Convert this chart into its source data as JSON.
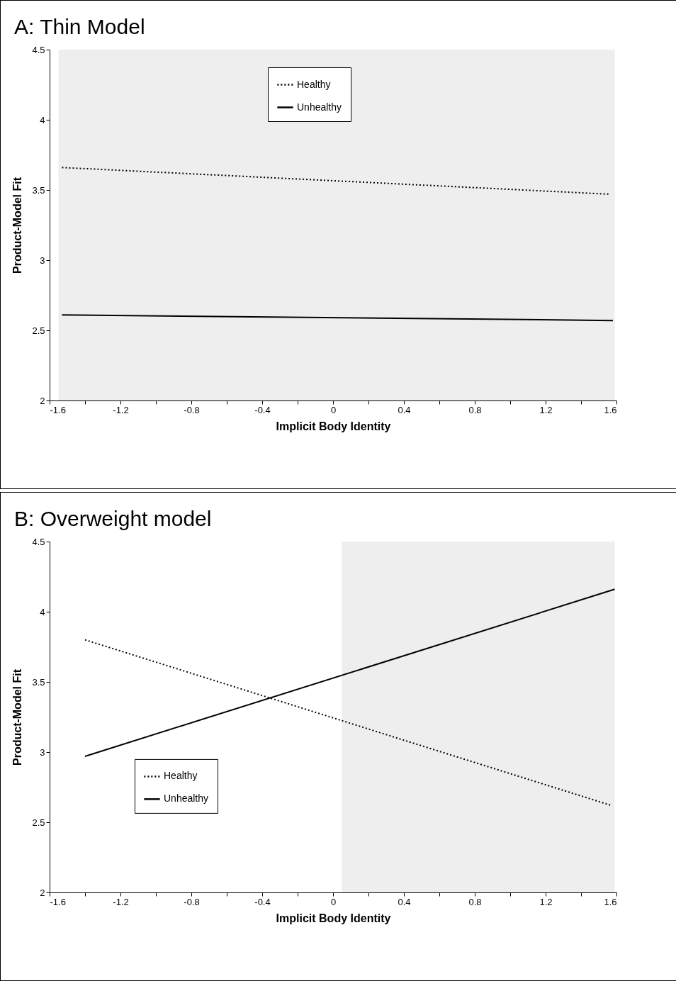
{
  "chart_data": [
    {
      "type": "line",
      "title": "A: Thin Model",
      "xlabel": "Implicit Body Identity",
      "ylabel": "Product-Model Fit",
      "xlim": [
        -1.6,
        1.6
      ],
      "ylim": [
        2,
        4.5
      ],
      "xticks": [
        -1.6,
        {
          "value": -1.4,
          "label": null
        },
        -1.2,
        {
          "value": -1.0,
          "label": null
        },
        -0.8,
        {
          "value": -0.6,
          "label": null
        },
        -0.4,
        {
          "value": -0.2,
          "label": null
        },
        0,
        {
          "value": 0.2,
          "label": null
        },
        0.4,
        {
          "value": 0.6,
          "label": null
        },
        0.8,
        {
          "value": 1.0,
          "label": null
        },
        1.2,
        {
          "value": 1.4,
          "label": null
        },
        1.6
      ],
      "yticks": [
        2,
        2.5,
        3,
        3.5,
        4,
        4.5
      ],
      "grid": false,
      "legend": "top",
      "marker": "none",
      "bands": [
        {
          "axis": "x",
          "from": -1.55,
          "to": 1.59,
          "color": "#eeeeee"
        }
      ],
      "series": [
        {
          "name": "Healthy",
          "color": "#000000",
          "line_style": "dotted",
          "x": [
            -1.53,
            1.56
          ],
          "values": [
            3.66,
            3.47
          ]
        },
        {
          "name": "Unhealthy",
          "color": "#000000",
          "line_style": "solid",
          "x": [
            -1.53,
            1.58
          ],
          "values": [
            2.61,
            2.57
          ]
        }
      ]
    },
    {
      "type": "line",
      "title": "B: Overweight model",
      "xlabel": "Implicit Body Identity",
      "ylabel": "Product-Model Fit",
      "xlim": [
        -1.6,
        1.6
      ],
      "ylim": [
        2,
        4.5
      ],
      "xticks": [
        -1.6,
        {
          "value": -1.4,
          "label": null
        },
        -1.2,
        {
          "value": -1.0,
          "label": null
        },
        -0.8,
        {
          "value": -0.6,
          "label": null
        },
        -0.4,
        {
          "value": -0.2,
          "label": null
        },
        0,
        {
          "value": 0.2,
          "label": null
        },
        0.4,
        {
          "value": 0.6,
          "label": null
        },
        0.8,
        {
          "value": 1.0,
          "label": null
        },
        1.2,
        {
          "value": 1.4,
          "label": null
        },
        1.6
      ],
      "yticks": [
        2,
        2.5,
        3,
        3.5,
        4,
        4.5
      ],
      "grid": false,
      "legend": "bottom left",
      "marker": "none",
      "bands": [
        {
          "axis": "x",
          "from": 0.05,
          "to": 1.59,
          "color": "#eeeeee"
        }
      ],
      "series": [
        {
          "name": "Healthy",
          "color": "#000000",
          "line_style": "dotted",
          "x": [
            -1.4,
            1.57
          ],
          "values": [
            3.8,
            2.62
          ]
        },
        {
          "name": "Unhealthy",
          "color": "#000000",
          "line_style": "solid",
          "x": [
            -1.4,
            1.59
          ],
          "values": [
            2.97,
            4.16
          ]
        }
      ]
    }
  ]
}
